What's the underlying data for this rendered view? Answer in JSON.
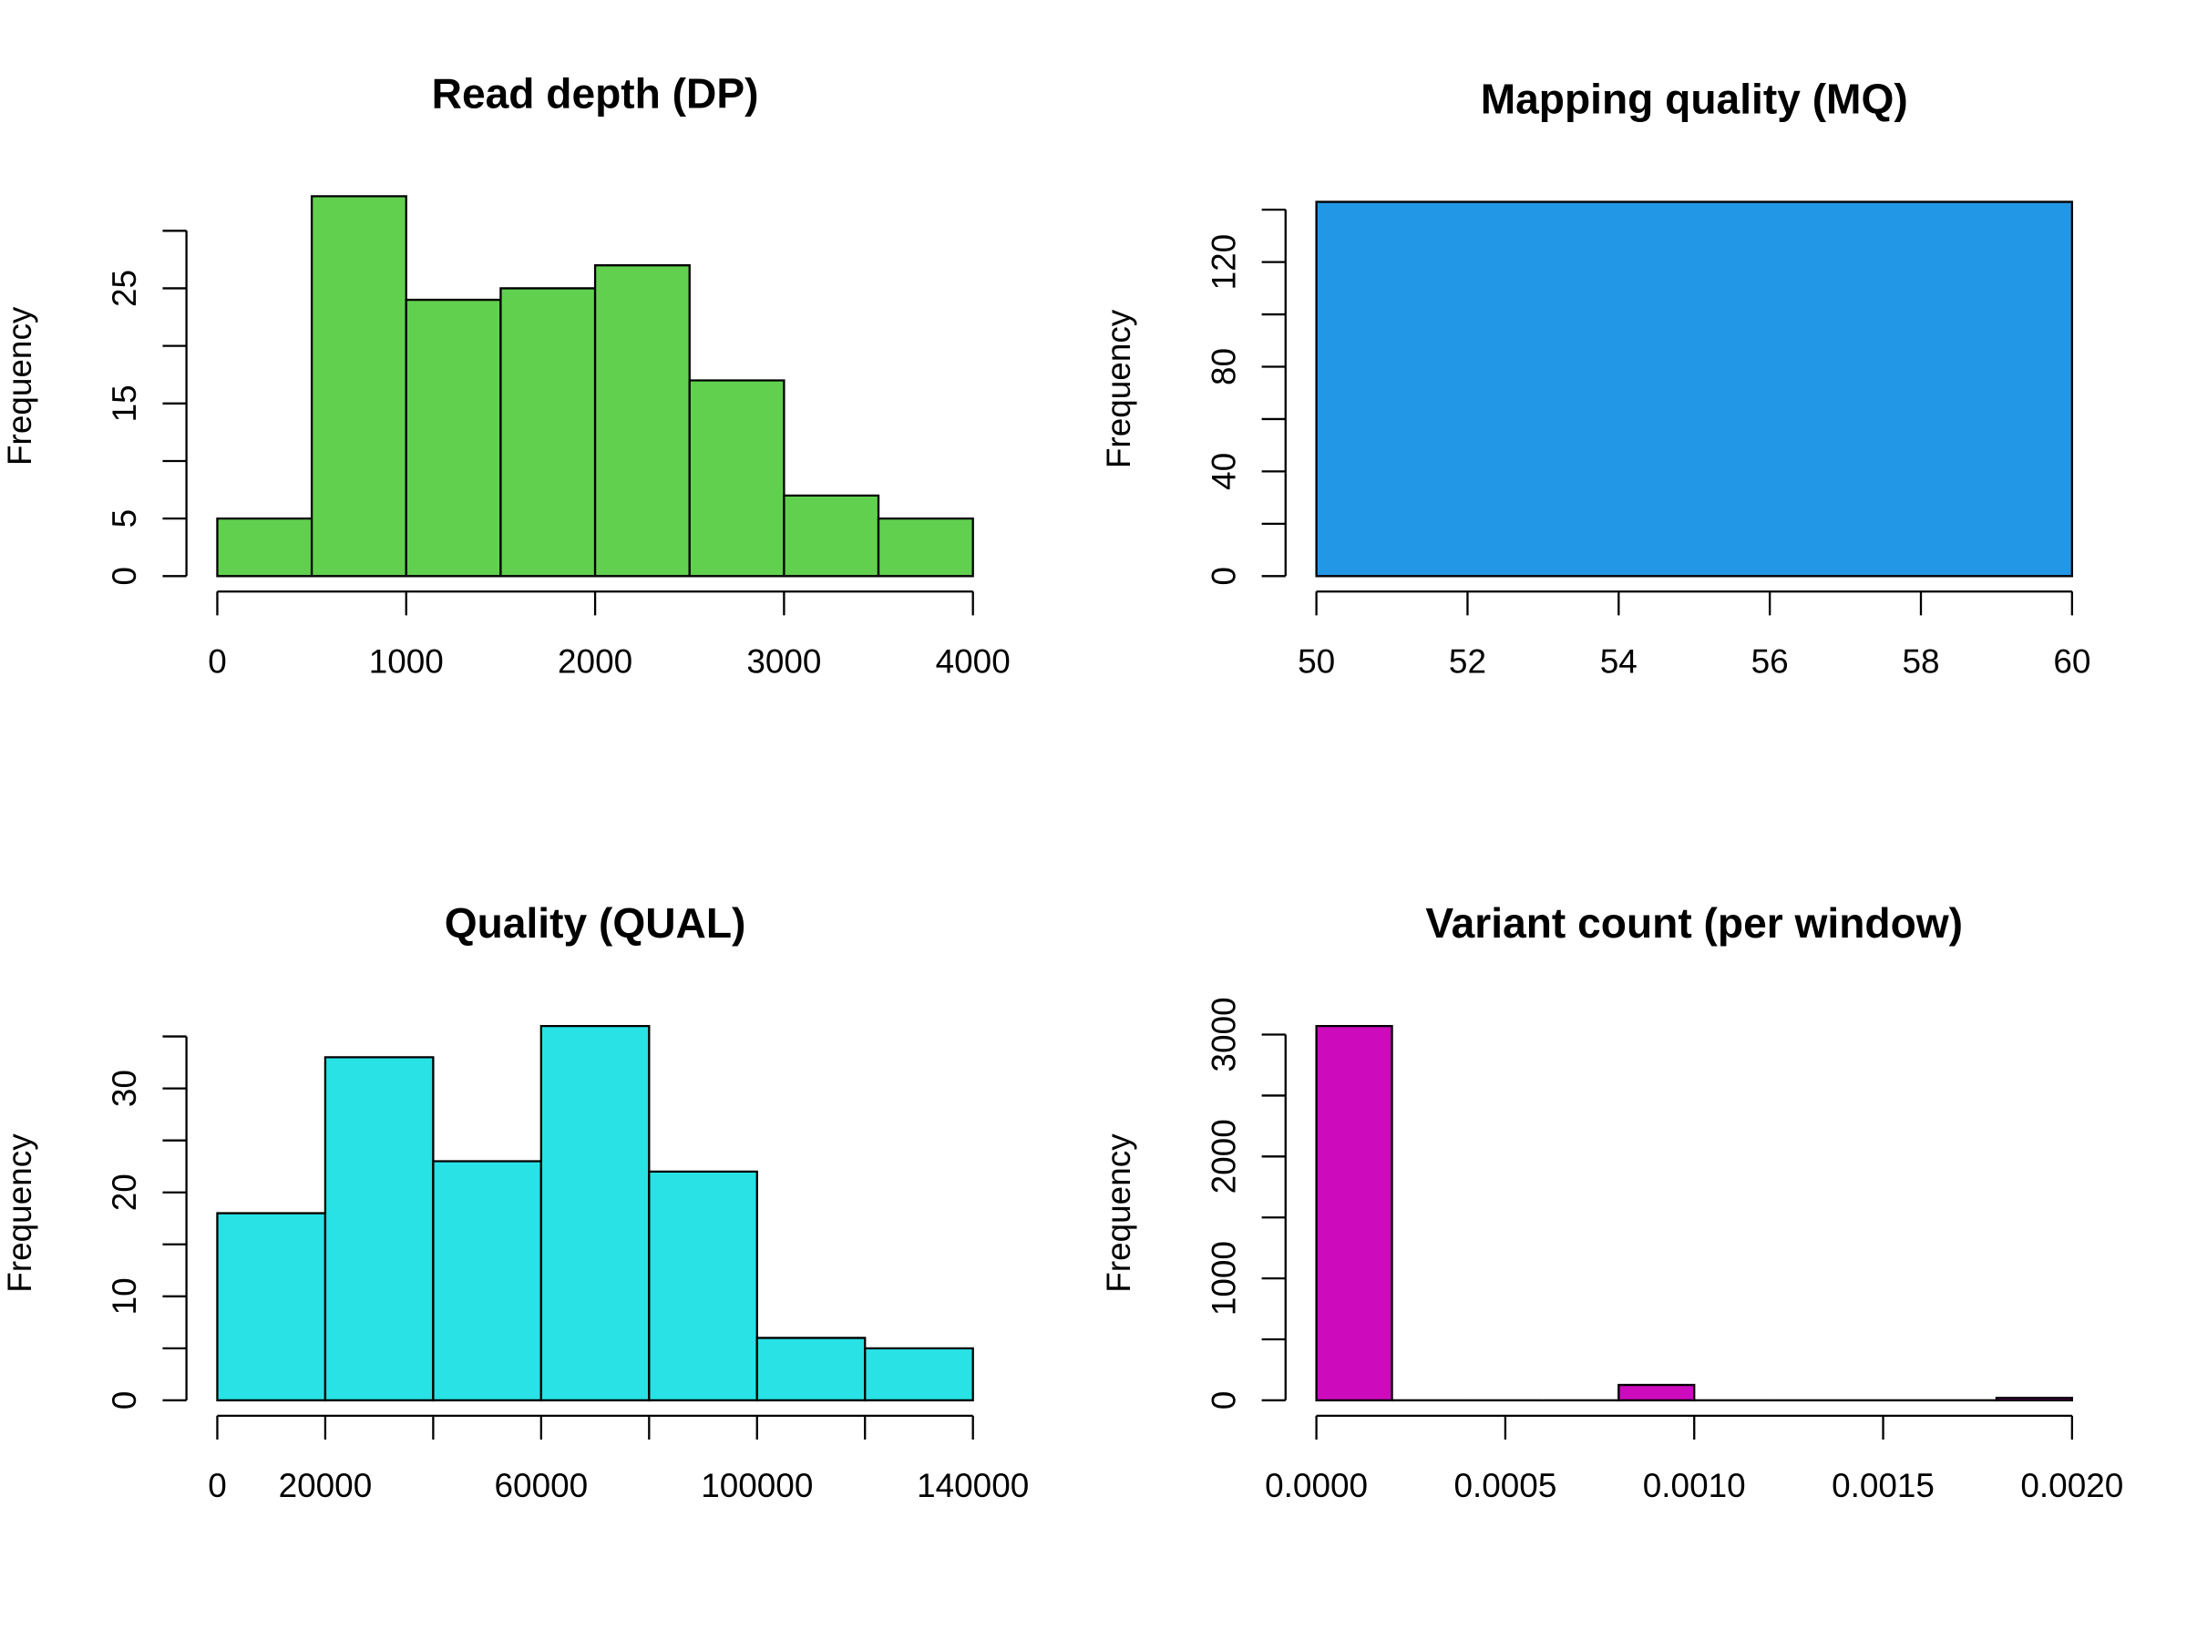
{
  "chart_data": [
    {
      "type": "histogram",
      "title": "Read depth (DP)",
      "ylabel": "Frequency",
      "color": "#61d04f",
      "bins": [
        0,
        500,
        1000,
        1500,
        2000,
        2500,
        3000,
        3500,
        4000
      ],
      "values": [
        5,
        33,
        24,
        25,
        27,
        17,
        7,
        5
      ],
      "xlim": [
        0,
        4000
      ],
      "xticks": [
        0,
        1000,
        2000,
        3000,
        4000
      ],
      "ylim": [
        0,
        33
      ],
      "yticks": [
        0,
        5,
        15,
        25
      ],
      "yticks_unlabeled": [
        10,
        20,
        30
      ]
    },
    {
      "type": "histogram",
      "title": "Mapping quality (MQ)",
      "ylabel": "Frequency",
      "color": "#2297e6",
      "bins": [
        50,
        60
      ],
      "values": [
        143
      ],
      "xlim": [
        50,
        60
      ],
      "xticks": [
        50,
        52,
        54,
        56,
        58,
        60
      ],
      "ylim": [
        0,
        143
      ],
      "yticks": [
        0,
        40,
        80,
        120
      ],
      "yticks_unlabeled": [
        20,
        60,
        100,
        140
      ]
    },
    {
      "type": "histogram",
      "title": "Quality (QUAL)",
      "ylabel": "Frequency",
      "color": "#28e2e5",
      "bins": [
        0,
        20000,
        40000,
        60000,
        80000,
        100000,
        120000,
        140000
      ],
      "values": [
        18,
        33,
        23,
        36,
        22,
        6,
        5
      ],
      "xlim": [
        0,
        140000
      ],
      "xticks": [
        0,
        20000,
        60000,
        100000,
        140000
      ],
      "xticks_unlabeled": [
        40000,
        80000,
        120000
      ],
      "ylim": [
        0,
        36
      ],
      "yticks": [
        0,
        10,
        20,
        30
      ],
      "yticks_unlabeled": [
        5,
        15,
        25,
        35
      ]
    },
    {
      "type": "histogram",
      "title": "Variant count (per window)",
      "ylabel": "Frequency",
      "color": "#cd0bbc",
      "bins": [
        0,
        0.0002,
        0.0004,
        0.0006,
        0.0008,
        0.001,
        0.0012,
        0.0014,
        0.0016,
        0.0018,
        0.002
      ],
      "values": [
        3070,
        0,
        0,
        0,
        126,
        0,
        0,
        0,
        0,
        20
      ],
      "xlim": [
        0,
        0.002
      ],
      "xticks": [
        {
          "value": 0,
          "label": "0.0000"
        },
        {
          "value": 0.0005,
          "label": "0.0005"
        },
        {
          "value": 0.001,
          "label": "0.0010"
        },
        {
          "value": 0.0015,
          "label": "0.0015"
        },
        {
          "value": 0.002,
          "label": "0.0020"
        }
      ],
      "ylim": [
        0,
        3070
      ],
      "yticks": [
        0,
        1000,
        2000,
        3000
      ],
      "yticks_unlabeled": [
        500,
        1500,
        2500
      ]
    }
  ]
}
